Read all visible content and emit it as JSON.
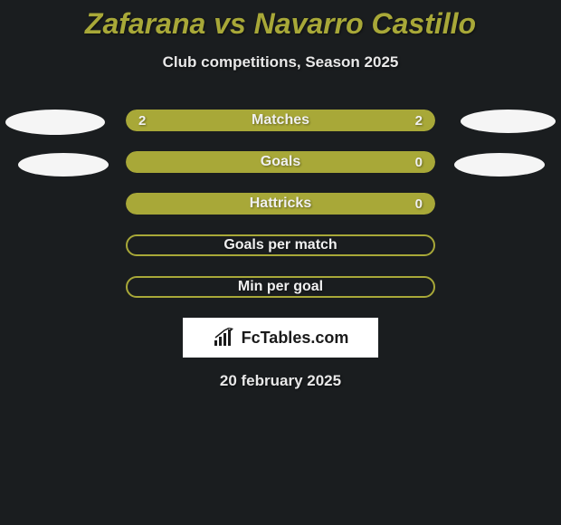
{
  "title": "Zafarana vs Navarro Castillo",
  "subtitle": "Club competitions, Season 2025",
  "date": "20 february 2025",
  "logo_text": "FcTables.com",
  "colors": {
    "background": "#1a1d1f",
    "title_color": "#a8a838",
    "bar_fill": "#a8a838",
    "bar_outline": "#a8a838",
    "ellipse": "#f5f5f5",
    "text_light": "#e8e8e8"
  },
  "stats": [
    {
      "label": "Matches",
      "left_value": "2",
      "right_value": "2",
      "left_pct": 50,
      "right_pct": 50,
      "filled": true
    },
    {
      "label": "Goals",
      "left_value": "",
      "right_value": "0",
      "left_pct": 100,
      "right_pct": 0,
      "filled": true
    },
    {
      "label": "Hattricks",
      "left_value": "",
      "right_value": "0",
      "left_pct": 100,
      "right_pct": 0,
      "filled": true
    },
    {
      "label": "Goals per match",
      "left_value": "",
      "right_value": "",
      "left_pct": 0,
      "right_pct": 0,
      "filled": false
    },
    {
      "label": "Min per goal",
      "left_value": "",
      "right_value": "",
      "left_pct": 0,
      "right_pct": 0,
      "filled": false
    }
  ]
}
